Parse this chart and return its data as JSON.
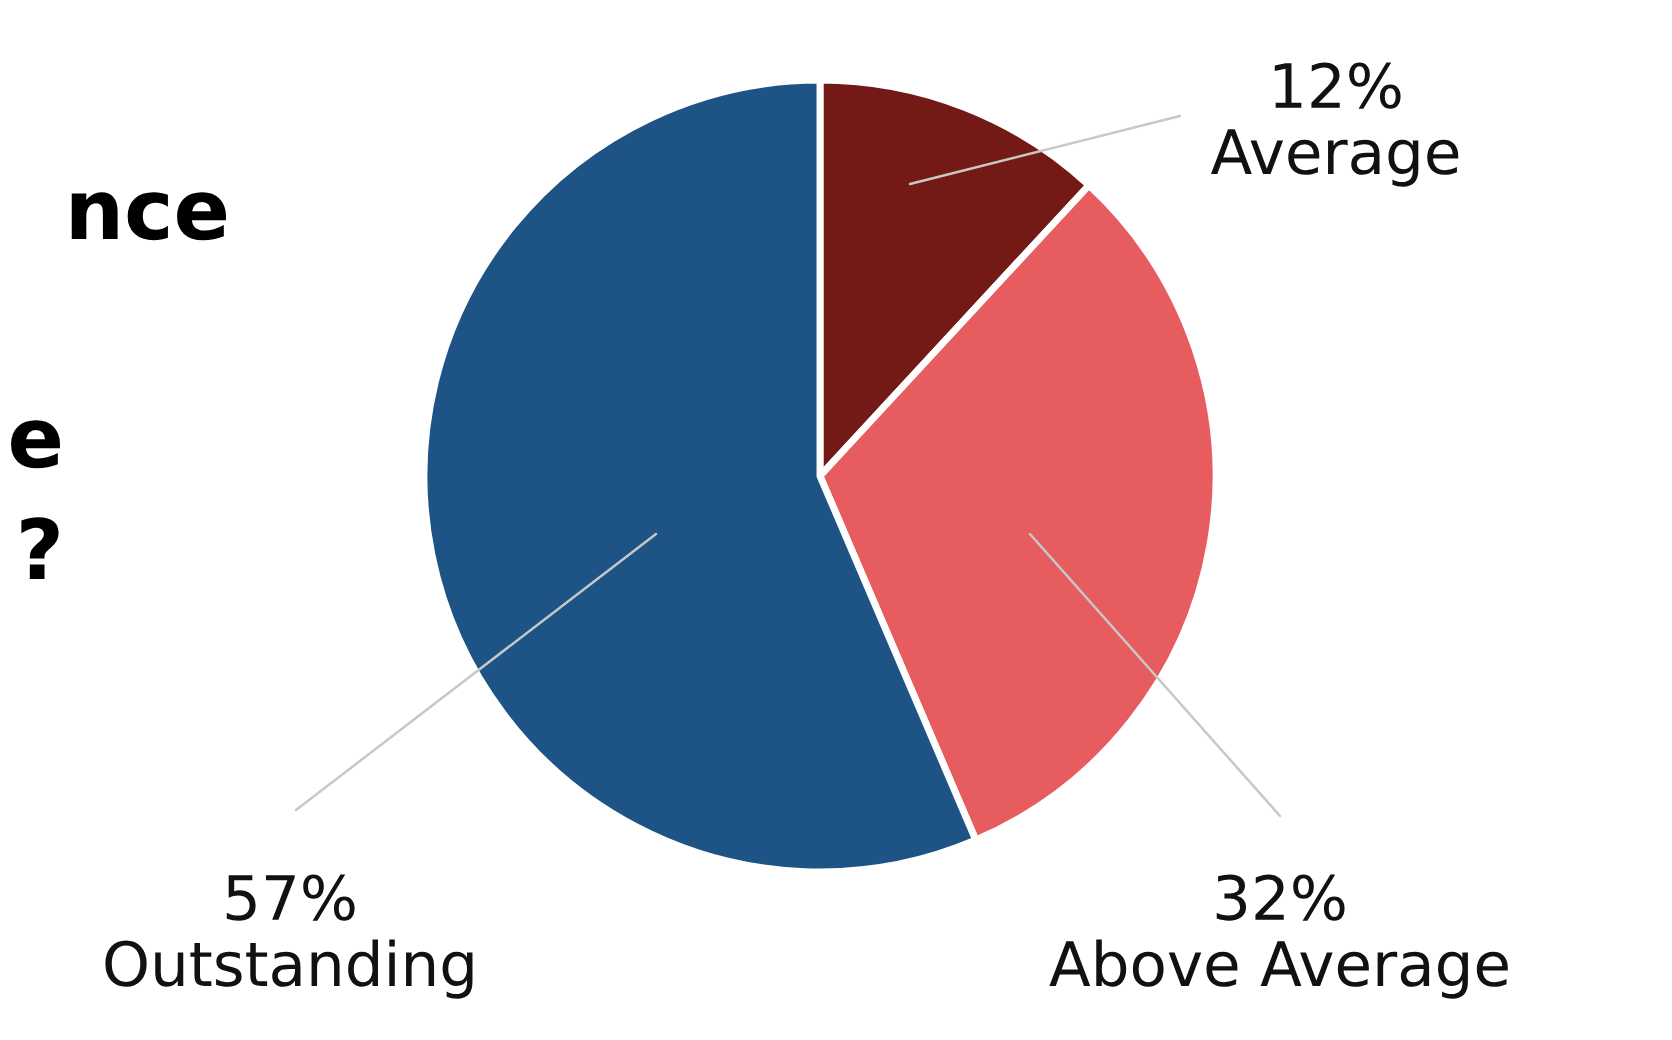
{
  "chart_data": {
    "type": "pie",
    "categories": [
      "Average",
      "Above Average",
      "Outstanding"
    ],
    "values": [
      12,
      32,
      57
    ],
    "colors": [
      "#731a17",
      "#e65c5f",
      "#1d5485"
    ],
    "value_labels": [
      "12%",
      "32%",
      "57%"
    ],
    "legend": false,
    "annotations": [
      "nce",
      "e",
      "?"
    ]
  }
}
